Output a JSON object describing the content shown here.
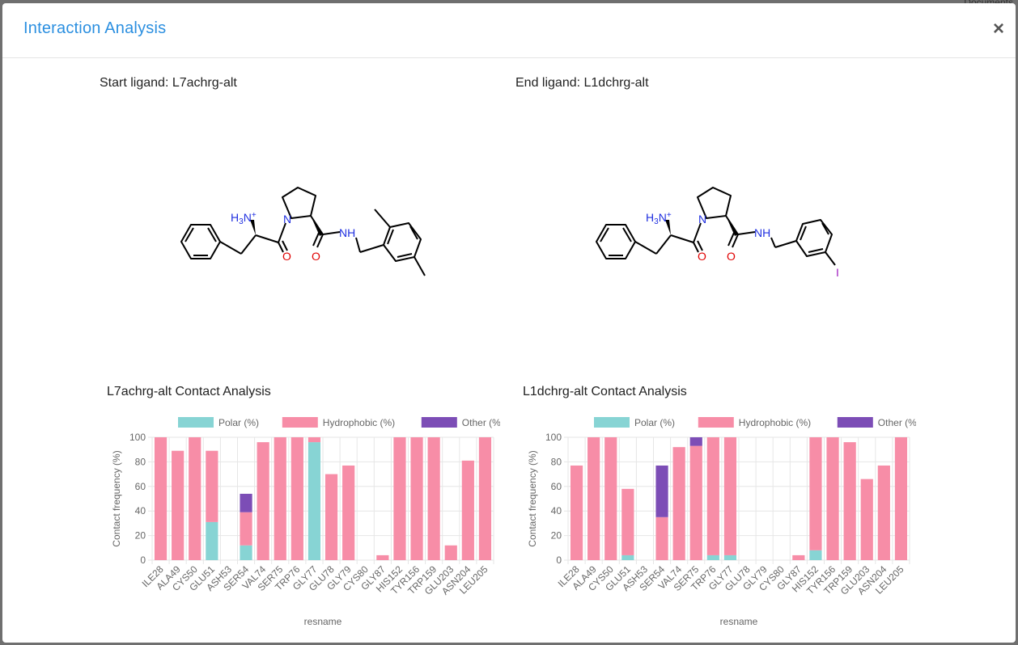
{
  "background": {
    "peek_text": "Documents"
  },
  "modal": {
    "title": "Interaction Analysis",
    "close_label": "×",
    "start_ligand": "Start ligand: L7achrg-alt",
    "end_ligand": "End ligand: L1dchrg-alt"
  },
  "molecules": {
    "start": {
      "nh3": "H",
      "nh3_sub": "3",
      "nh3_rest": "N",
      "nh3_charge": "+",
      "n": "N",
      "o1": "O",
      "o2": "O",
      "nh": "NH"
    },
    "end": {
      "nh3": "H",
      "nh3_sub": "3",
      "nh3_rest": "N",
      "nh3_charge": "+",
      "n": "N",
      "o1": "O",
      "o2": "O",
      "nh": "NH",
      "halogen": "I"
    }
  },
  "colors": {
    "polar": "#87d4d4",
    "hydrophobic": "#f78da7",
    "other": "#7c4db6",
    "grid": "#e6e6e6",
    "axis_text": "#666666"
  },
  "chart_data": [
    {
      "type": "bar",
      "stacked": true,
      "title": "L7achrg-alt Contact Analysis",
      "xlabel": "resname",
      "ylabel": "Contact frequency (%)",
      "ylim": [
        0,
        100
      ],
      "yticks": [
        0,
        20,
        40,
        60,
        80,
        100
      ],
      "legend": "top",
      "categories": [
        "ILE28",
        "ALA49",
        "CYS50",
        "GLU51",
        "ASH53",
        "SER54",
        "VAL74",
        "SER75",
        "TRP76",
        "GLY77",
        "GLU78",
        "GLY79",
        "CYS80",
        "GLY87",
        "HIS152",
        "TYR156",
        "TRP159",
        "GLU203",
        "ASN204",
        "LEU205"
      ],
      "series": [
        {
          "name": "Polar (%)",
          "color": "#87d4d4",
          "values": [
            0,
            0,
            0,
            31,
            0,
            12,
            0,
            0,
            0,
            96,
            0,
            0,
            0,
            0,
            0,
            0,
            0,
            0,
            0,
            0
          ]
        },
        {
          "name": "Hydrophobic (%)",
          "color": "#f78da7",
          "values": [
            100,
            89,
            100,
            58,
            0,
            27,
            96,
            100,
            100,
            4,
            70,
            77,
            0,
            4,
            100,
            100,
            100,
            12,
            81,
            100
          ]
        },
        {
          "name": "Other (%)",
          "color": "#7c4db6",
          "values": [
            0,
            0,
            0,
            0,
            0,
            15,
            0,
            0,
            0,
            0,
            0,
            0,
            0,
            0,
            0,
            0,
            0,
            0,
            0,
            0
          ]
        }
      ]
    },
    {
      "type": "bar",
      "stacked": true,
      "title": "L1dchrg-alt Contact Analysis",
      "xlabel": "resname",
      "ylabel": "Contact frequency (%)",
      "ylim": [
        0,
        100
      ],
      "yticks": [
        0,
        20,
        40,
        60,
        80,
        100
      ],
      "legend": "top",
      "categories": [
        "ILE28",
        "ALA49",
        "CYS50",
        "GLU51",
        "ASH53",
        "SER54",
        "VAL74",
        "SER75",
        "TRP76",
        "GLY77",
        "GLU78",
        "GLY79",
        "CYS80",
        "GLY87",
        "HIS152",
        "TYR156",
        "TRP159",
        "GLU203",
        "ASN204",
        "LEU205"
      ],
      "series": [
        {
          "name": "Polar (%)",
          "color": "#87d4d4",
          "values": [
            0,
            0,
            0,
            4,
            0,
            0,
            0,
            0,
            4,
            4,
            0,
            0,
            0,
            0,
            8,
            0,
            0,
            0,
            0,
            0
          ]
        },
        {
          "name": "Hydrophobic (%)",
          "color": "#f78da7",
          "values": [
            77,
            100,
            100,
            54,
            0,
            35,
            92,
            93,
            96,
            96,
            0,
            0,
            0,
            4,
            92,
            100,
            96,
            66,
            77,
            100
          ]
        },
        {
          "name": "Other (%)",
          "color": "#7c4db6",
          "values": [
            0,
            0,
            0,
            0,
            0,
            42,
            0,
            7,
            0,
            0,
            0,
            0,
            0,
            0,
            0,
            0,
            0,
            0,
            0,
            0
          ]
        }
      ]
    }
  ]
}
